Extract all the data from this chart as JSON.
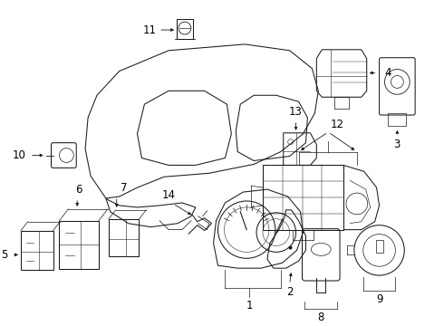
{
  "background_color": "#ffffff",
  "line_color": "#1a1a1a",
  "font_size": 8.5,
  "lw": 0.75
}
